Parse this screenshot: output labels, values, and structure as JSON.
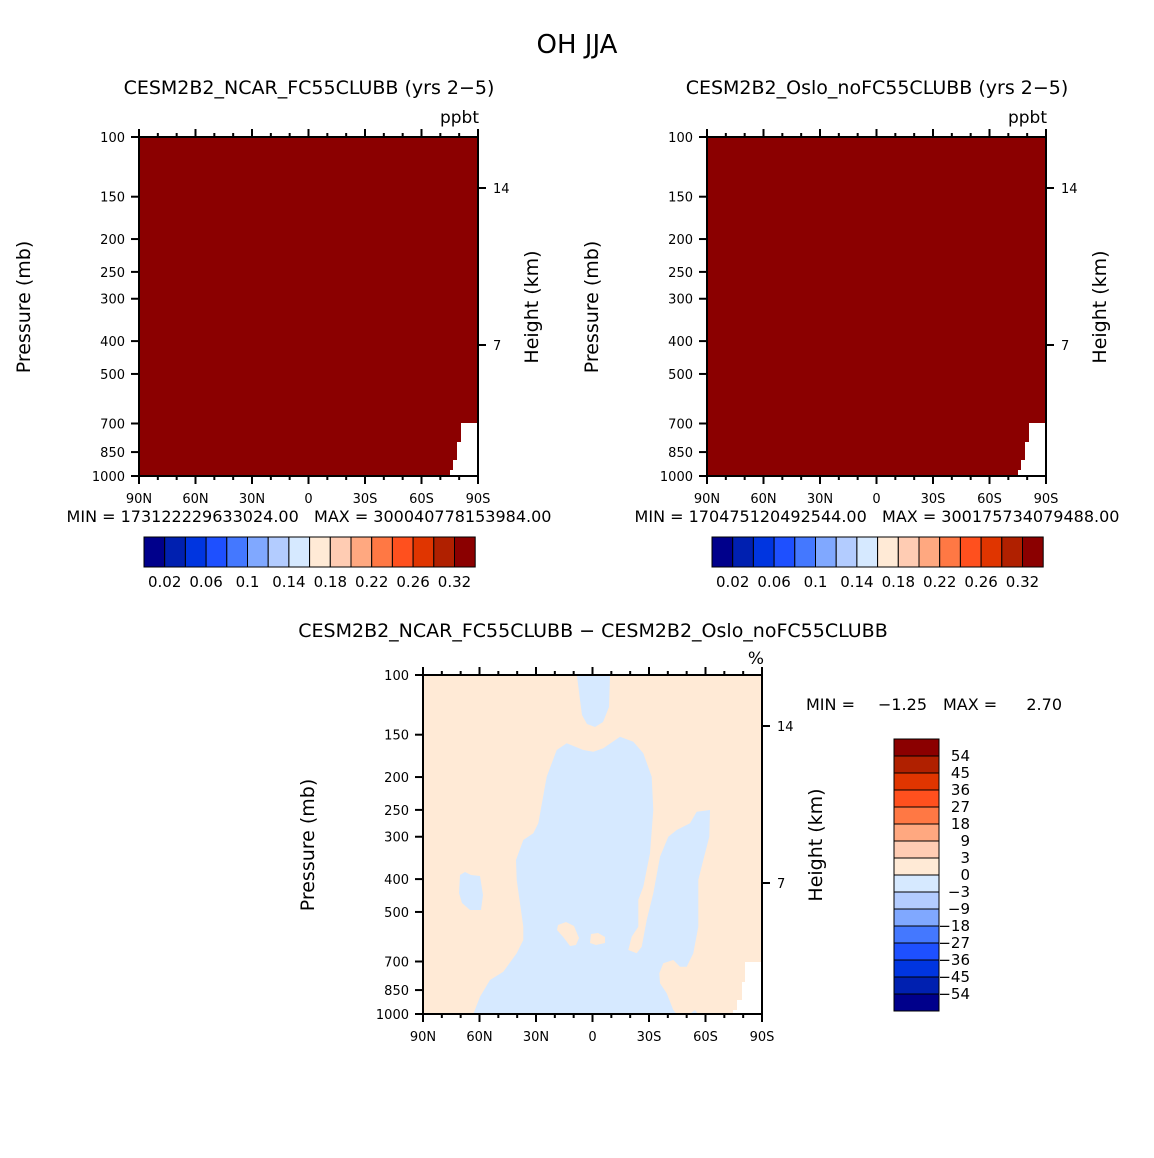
{
  "chart_data": {
    "title": "OH JJA",
    "type": "heatmap",
    "panels": [
      {
        "id": "p1",
        "title": "CESM2B2_NCAR_FC55CLUBB (yrs 2−5)",
        "units": "ppbt",
        "ylabel": "Pressure (mb)",
        "ylabel_right": "Height (km)",
        "yticks": [
          "100",
          "150",
          "200",
          "250",
          "300",
          "400",
          "500",
          "700",
          "850",
          "1000"
        ],
        "yticks_right": [
          "14",
          "7"
        ],
        "xticks": [
          "90N",
          "60N",
          "30N",
          "0",
          "30S",
          "60S",
          "90S"
        ],
        "stats": "MIN = 173122229633024.00   MAX = 300040778153984.00",
        "fill": "above max contour level everywhere (darkest red), missing near 90S below 700 mb",
        "colorbar_labels": [
          "0.02",
          "0.06",
          "0.1",
          "0.14",
          "0.18",
          "0.22",
          "0.26",
          "0.32"
        ]
      },
      {
        "id": "p2",
        "title": "CESM2B2_Oslo_noFC55CLUBB (yrs 2−5)",
        "units": "ppbt",
        "ylabel": "Pressure (mb)",
        "ylabel_right": "Height (km)",
        "yticks": [
          "100",
          "150",
          "200",
          "250",
          "300",
          "400",
          "500",
          "700",
          "850",
          "1000"
        ],
        "yticks_right": [
          "14",
          "7"
        ],
        "xticks": [
          "90N",
          "60N",
          "30N",
          "0",
          "30S",
          "60S",
          "90S"
        ],
        "stats": "MIN = 170475120492544.00   MAX = 300175734079488.00",
        "fill": "above max contour level everywhere (darkest red), missing near 90S below 700 mb",
        "colorbar_labels": [
          "0.02",
          "0.06",
          "0.1",
          "0.14",
          "0.18",
          "0.22",
          "0.26",
          "0.32"
        ]
      },
      {
        "id": "p3",
        "title": "CESM2B2_NCAR_FC55CLUBB − CESM2B2_Oslo_noFC55CLUBB",
        "units": "%",
        "ylabel": "Pressure (mb)",
        "ylabel_right": "Height (km)",
        "yticks": [
          "100",
          "150",
          "200",
          "250",
          "300",
          "400",
          "500",
          "700",
          "850",
          "1000"
        ],
        "yticks_right": [
          "14",
          "7"
        ],
        "xticks": [
          "90N",
          "60N",
          "30N",
          "0",
          "30S",
          "60S",
          "90S"
        ],
        "min_label": "MIN =",
        "min_value": "−1.25",
        "max_label": "MAX =",
        "max_value": "2.70",
        "fill": "values between -3 and 3; negative (light blue) in tropics/mid-troposphere, positive (light orange) elsewhere",
        "colorbar_labels": [
          "54",
          "45",
          "36",
          "27",
          "18",
          "9",
          "3",
          "0",
          "−3",
          "−9",
          "−18",
          "−27",
          "−36",
          "−45",
          "−54"
        ]
      }
    ],
    "yrange_mb": [
      1000,
      100
    ],
    "xrange_lat": [
      "90N",
      "90S"
    ]
  },
  "colors": {
    "palette": [
      "#00008b",
      "#0020b0",
      "#0035e0",
      "#1e50ff",
      "#4478ff",
      "#80a8ff",
      "#b3ccff",
      "#d6e9ff",
      "#ffead6",
      "#ffccb3",
      "#ffa880",
      "#ff7844",
      "#ff501e",
      "#e03500",
      "#b02000",
      "#8b0000"
    ],
    "neg_small": "#d6e9ff",
    "pos_small": "#ffead6"
  }
}
